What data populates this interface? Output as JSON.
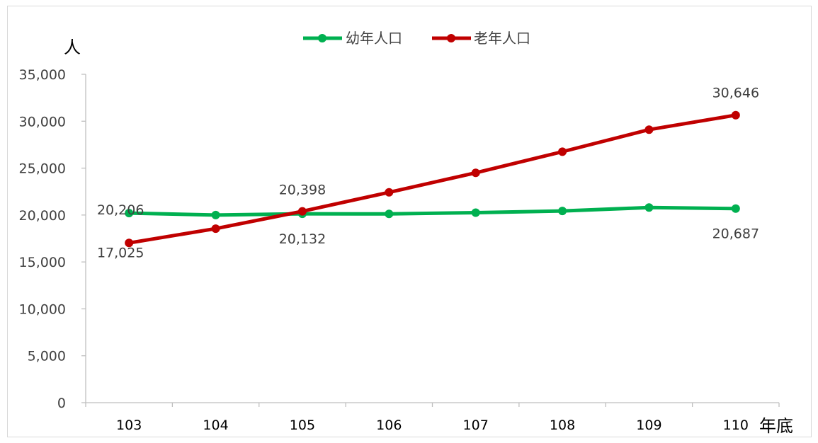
{
  "chart_data": {
    "type": "line",
    "categories": [
      "103",
      "104",
      "105",
      "106",
      "107",
      "108",
      "109",
      "110"
    ],
    "series": [
      {
        "name": "幼年人口",
        "color": "#00b050",
        "values": [
          20206,
          20000,
          20132,
          20120,
          20250,
          20430,
          20800,
          20687
        ]
      },
      {
        "name": "老年人口",
        "color": "#c00000",
        "values": [
          17025,
          18550,
          20398,
          22420,
          24500,
          26750,
          29100,
          30646
        ]
      }
    ],
    "data_labels": [
      {
        "series": 0,
        "index": 0,
        "text": "20,206"
      },
      {
        "series": 1,
        "index": 0,
        "text": "17,025"
      },
      {
        "series": 1,
        "index": 2,
        "text": "20,398"
      },
      {
        "series": 0,
        "index": 2,
        "text": "20,132"
      },
      {
        "series": 1,
        "index": 7,
        "text": "30,646"
      },
      {
        "series": 0,
        "index": 7,
        "text": "20,687"
      }
    ],
    "y_ticks": [
      "0",
      "5,000",
      "10,000",
      "15,000",
      "20,000",
      "25,000",
      "30,000",
      "35,000"
    ],
    "ylim": [
      0,
      35000
    ],
    "ylabel": "人",
    "xlabel": "年底",
    "legend_position": "top",
    "grid": false
  }
}
